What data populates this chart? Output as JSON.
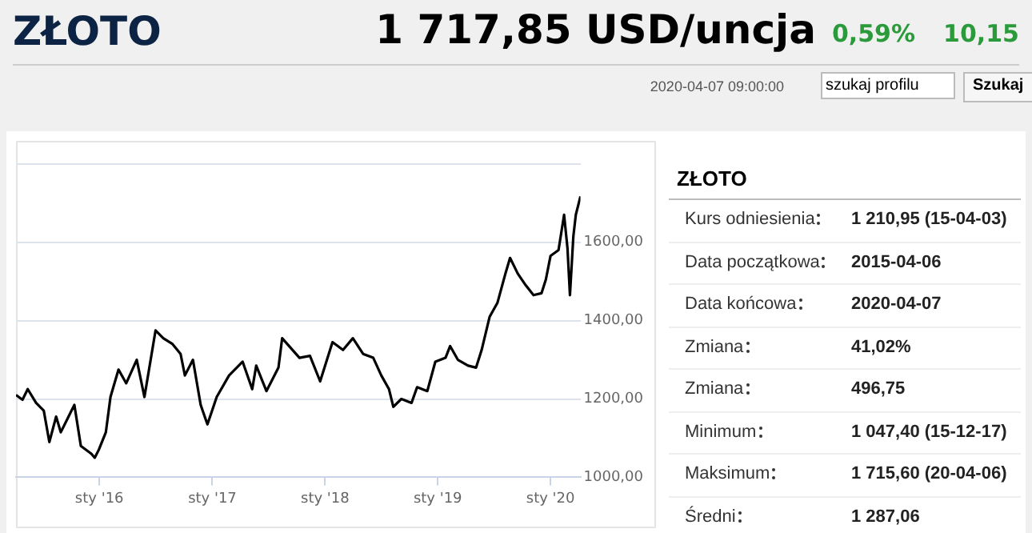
{
  "chart_data": [
    {
      "type": "line",
      "title": "ZŁOTO",
      "subtitle": "1 717,85 USD/uncja",
      "annotations": [
        "0,59%",
        "10,15",
        "2020-04-07 09:00:00",
        "szukaj profilu",
        "Szukaj"
      ],
      "color": "#000000",
      "grid": "y",
      "x": [
        "2015-04-06",
        "2015-04-27",
        "2015-05-14",
        "2015-06-10",
        "2015-07-05",
        "2015-07-23",
        "2015-08-14",
        "2015-08-29",
        "2015-09-20",
        "2015-10-12",
        "2015-11-02",
        "2015-12-06",
        "2015-12-17",
        "2015-12-30",
        "2016-01-22",
        "2016-02-06",
        "2016-03-03",
        "2016-03-28",
        "2016-05-01",
        "2016-05-26",
        "2016-07-01",
        "2016-07-26",
        "2016-08-25",
        "2016-09-20",
        "2016-10-04",
        "2016-10-30",
        "2016-11-24",
        "2016-12-16",
        "2017-01-15",
        "2017-02-24",
        "2017-04-09",
        "2017-05-10",
        "2017-05-23",
        "2017-06-25",
        "2017-08-03",
        "2017-08-15",
        "2017-10-10",
        "2017-11-13",
        "2017-12-16",
        "2018-01-25",
        "2018-02-28",
        "2018-04-01",
        "2018-05-04",
        "2018-06-06",
        "2018-07-02",
        "2018-07-27",
        "2018-08-10",
        "2018-09-05",
        "2018-10-08",
        "2018-10-26",
        "2018-11-28",
        "2018-12-24",
        "2019-01-26",
        "2019-02-10",
        "2019-03-07",
        "2019-04-09",
        "2019-05-05",
        "2019-05-23",
        "2019-06-18",
        "2019-07-13",
        "2019-08-08",
        "2019-08-23",
        "2019-09-17",
        "2019-10-13",
        "2019-11-07",
        "2019-12-03",
        "2019-12-17",
        "2020-01-01",
        "2020-01-27",
        "2020-02-14",
        "2020-02-25",
        "2020-03-04",
        "2020-03-15",
        "2020-03-23",
        "2020-04-07"
      ],
      "values": [
        1210,
        1198,
        1225,
        1190,
        1170,
        1090,
        1155,
        1115,
        1150,
        1185,
        1080,
        1060,
        1050,
        1070,
        1115,
        1205,
        1275,
        1240,
        1300,
        1205,
        1375,
        1355,
        1340,
        1315,
        1260,
        1300,
        1185,
        1135,
        1205,
        1260,
        1295,
        1225,
        1285,
        1220,
        1280,
        1355,
        1305,
        1310,
        1245,
        1345,
        1325,
        1355,
        1315,
        1305,
        1260,
        1225,
        1180,
        1200,
        1190,
        1230,
        1220,
        1295,
        1305,
        1335,
        1300,
        1285,
        1280,
        1325,
        1410,
        1445,
        1520,
        1560,
        1520,
        1490,
        1465,
        1470,
        1505,
        1565,
        1580,
        1670,
        1585,
        1465,
        1615,
        1670,
        1717
      ],
      "xlim": [
        "2015-04-06",
        "2020-04-07"
      ],
      "xticks": [
        {
          "value": "2016-01-01",
          "label": "sty '16"
        },
        {
          "value": "2017-01-01",
          "label": "sty '17"
        },
        {
          "value": "2018-01-01",
          "label": "sty '18"
        },
        {
          "value": "2019-01-01",
          "label": "sty '19"
        },
        {
          "value": "2020-01-01",
          "label": "sty '20"
        }
      ],
      "ylim": [
        1000,
        1800
      ],
      "yticks": [
        {
          "value": 1000,
          "label": "1000,00"
        },
        {
          "value": 1200,
          "label": "1200,00"
        },
        {
          "value": 1400,
          "label": "1400,00"
        },
        {
          "value": 1600,
          "label": "1600,00"
        },
        {
          "value": 1800,
          "label": null
        }
      ]
    },
    {
      "type": "other",
      "title": "ZŁOTO",
      "categories": [
        "Kurs odniesienia",
        "Data początkowa",
        "Data końcowa",
        "Zmiana",
        "Zmiana",
        "Minimum",
        "Maksimum",
        "Średni"
      ],
      "value_labels": [
        "1 210,95 (15-04-03)",
        "2015-04-06",
        "2020-04-07",
        "41,02%",
        "496,75",
        "1 047,40 (15-12-17)",
        "1 715,60 (20-04-06)",
        "1 287,06"
      ]
    }
  ]
}
